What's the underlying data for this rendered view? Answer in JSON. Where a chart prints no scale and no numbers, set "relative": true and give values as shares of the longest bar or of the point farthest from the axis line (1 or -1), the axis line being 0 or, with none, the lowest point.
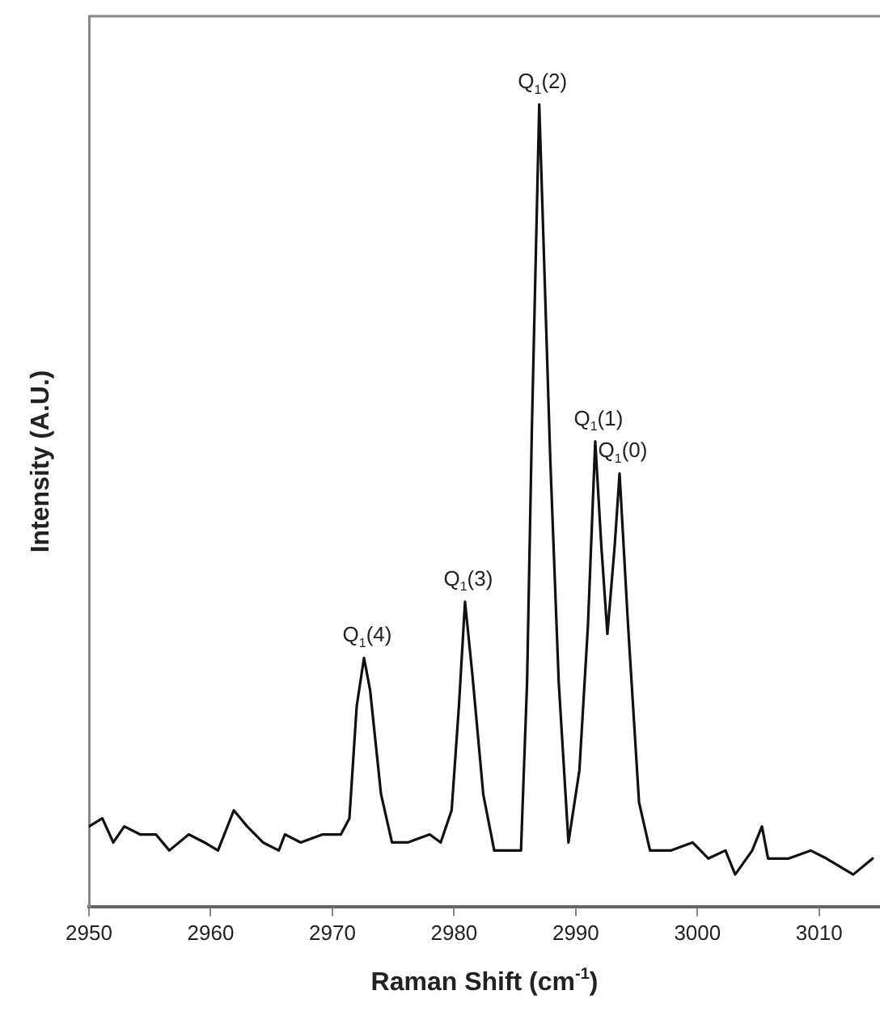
{
  "chart_data": {
    "type": "line",
    "relative": true,
    "xlabel": "Raman Shift (cm$^{-1}$)",
    "ylabel": "Intensity (A.U.)",
    "xlim": [
      2950,
      3015
    ],
    "xticks": [
      2950,
      2960,
      2970,
      2980,
      2990,
      3000,
      3010
    ],
    "grid": false,
    "legend": false,
    "marker": "none",
    "line_style": "solid",
    "series": [
      {
        "color": "#111111",
        "x": [
          2950.0,
          2951.1,
          2952.0,
          2952.9,
          2954.2,
          2955.5,
          2956.6,
          2958.2,
          2959.5,
          2960.6,
          2961.9,
          2963.0,
          2964.3,
          2965.6,
          2966.1,
          2967.4,
          2969.2,
          2970.7,
          2971.4,
          2972.0,
          2972.6,
          2973.1,
          2974.0,
          2974.9,
          2976.2,
          2978.0,
          2978.9,
          2979.8,
          2980.4,
          2980.9,
          2981.5,
          2982.4,
          2983.3,
          2984.6,
          2985.5,
          2986.0,
          2986.4,
          2987.0,
          2987.9,
          2988.6,
          2989.4,
          2990.3,
          2991.0,
          2991.6,
          2992.1,
          2992.6,
          2993.2,
          2993.6,
          2994.3,
          2995.2,
          2996.1,
          2997.8,
          2999.6,
          3000.9,
          3002.3,
          3003.1,
          3004.5,
          3005.3,
          3005.8,
          3007.5,
          3009.3,
          3010.6,
          3012.8,
          3014.4
        ],
        "values": [
          0.1,
          0.11,
          0.08,
          0.1,
          0.09,
          0.09,
          0.07,
          0.09,
          0.08,
          0.07,
          0.12,
          0.1,
          0.08,
          0.07,
          0.09,
          0.08,
          0.09,
          0.09,
          0.11,
          0.25,
          0.31,
          0.27,
          0.14,
          0.08,
          0.08,
          0.09,
          0.08,
          0.12,
          0.25,
          0.38,
          0.29,
          0.14,
          0.07,
          0.07,
          0.07,
          0.28,
          0.6,
          1.0,
          0.56,
          0.28,
          0.08,
          0.17,
          0.35,
          0.58,
          0.45,
          0.34,
          0.45,
          0.54,
          0.35,
          0.13,
          0.07,
          0.07,
          0.08,
          0.06,
          0.07,
          0.04,
          0.07,
          0.1,
          0.06,
          0.06,
          0.07,
          0.06,
          0.04,
          0.06
        ]
      }
    ],
    "annotations": [
      {
        "text": "Q$_{1}$(4)",
        "x": 2972.6,
        "y": 0.31
      },
      {
        "text": "Q$_{1}$(3)",
        "x": 2980.9,
        "y": 0.38
      },
      {
        "text": "Q$_{1}$(2)",
        "x": 2987.0,
        "y": 1.0
      },
      {
        "text": "Q$_{1}$(1)",
        "x": 2991.6,
        "y": 0.58
      },
      {
        "text": "Q$_{1}$(0)",
        "x": 2993.6,
        "y": 0.54
      }
    ]
  }
}
